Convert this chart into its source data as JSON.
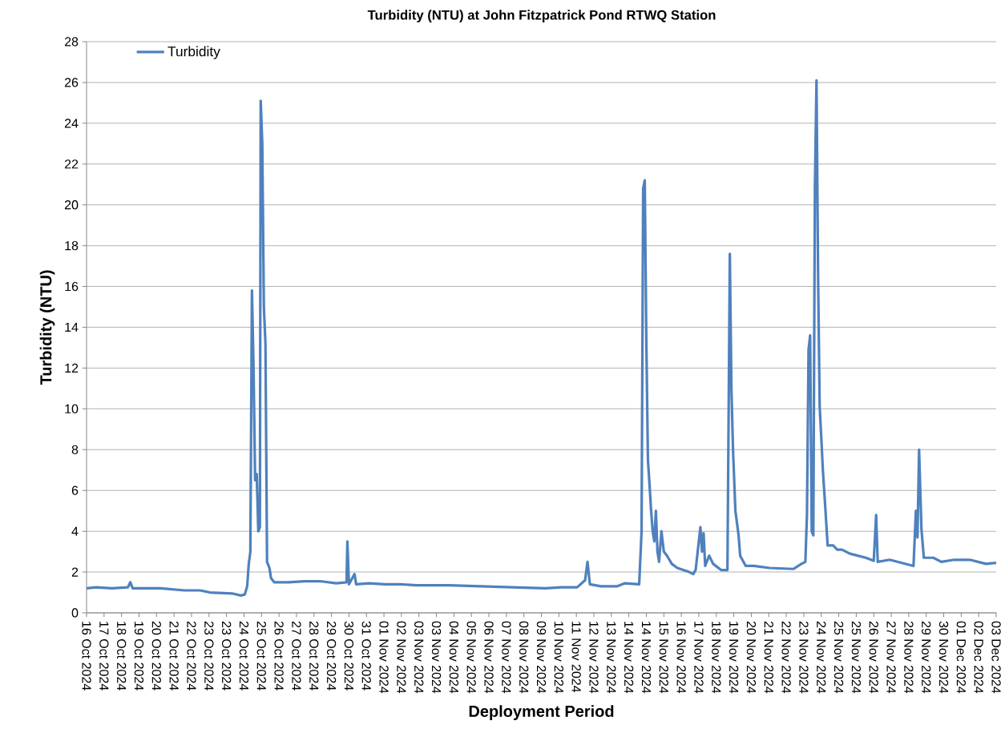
{
  "chart_data": {
    "type": "line",
    "title": "Turbidity (NTU) at John Fitzpatrick Pond RTWQ Station",
    "xlabel": "Deployment Period",
    "ylabel": "Turbidity (NTU)",
    "x": [
      "2024-10-16T15:00",
      "2024-10-17T03:00",
      "2024-10-17T23:00",
      "2024-10-18T19:00",
      "2024-10-18T22:00",
      "2024-10-19T01:00",
      "2024-10-20T12:00",
      "2024-10-21T18:00",
      "2024-10-22T14:00",
      "2024-10-23T02:00",
      "2024-10-24T06:00",
      "2024-10-24T17:00",
      "2024-10-24T22:00",
      "2024-10-25T01:00",
      "2024-10-25T03:00",
      "2024-10-25T05:00",
      "2024-10-25T07:00",
      "2024-10-25T09:00",
      "2024-10-25T11:00",
      "2024-10-25T13:00",
      "2024-10-25T15:00",
      "2024-10-25T17:00",
      "2024-10-25T18:00",
      "2024-10-25T20:00",
      "2024-10-25T22:00",
      "2024-10-26T00:00",
      "2024-10-26T02:00",
      "2024-10-26T05:00",
      "2024-10-26T07:00",
      "2024-10-26T11:00",
      "2024-10-27T05:00",
      "2024-10-28T01:00",
      "2024-10-28T21:00",
      "2024-10-29T17:00",
      "2024-10-30T06:00",
      "2024-10-30T07:00",
      "2024-10-30T09:00",
      "2024-10-30T16:00",
      "2024-10-30T18:00",
      "2024-10-31T10:00",
      "2024-11-01T06:00",
      "2024-11-02T02:00",
      "2024-11-02T22:00",
      "2024-11-04T15:00",
      "2024-11-06T07:00",
      "2024-11-07T23:00",
      "2024-11-09T16:00",
      "2024-11-10T12:00",
      "2024-11-11T08:00",
      "2024-11-11T18:00",
      "2024-11-11T21:00",
      "2024-11-12T00:00",
      "2024-11-12T14:00",
      "2024-11-13T10:00",
      "2024-11-13T20:00",
      "2024-11-14T14:00",
      "2024-11-14T17:00",
      "2024-11-14T19:00",
      "2024-11-14T21:00",
      "2024-11-14T23:00",
      "2024-11-15T01:00",
      "2024-11-15T03:00",
      "2024-11-15T05:00",
      "2024-11-15T07:00",
      "2024-11-15T09:00",
      "2024-11-15T11:00",
      "2024-11-15T13:00",
      "2024-11-15T15:00",
      "2024-11-15T18:00",
      "2024-11-15T21:00",
      "2024-11-16T01:00",
      "2024-11-16T07:00",
      "2024-11-16T14:00",
      "2024-11-17T05:00",
      "2024-11-17T10:00",
      "2024-11-17T13:00",
      "2024-11-17T17:00",
      "2024-11-17T19:00",
      "2024-11-17T21:00",
      "2024-11-17T23:00",
      "2024-11-18T01:00",
      "2024-11-18T06:00",
      "2024-11-18T11:00",
      "2024-11-18T21:00",
      "2024-11-19T05:00",
      "2024-11-19T08:00",
      "2024-11-19T10:00",
      "2024-11-19T12:00",
      "2024-11-19T15:00",
      "2024-11-19T19:00",
      "2024-11-19T21:00",
      "2024-11-20T04:00",
      "2024-11-20T14:00",
      "2024-11-21T10:00",
      "2024-11-22T16:00",
      "2024-11-23T02:00",
      "2024-11-23T07:00",
      "2024-11-23T09:00",
      "2024-11-23T11:00",
      "2024-11-23T13:00",
      "2024-11-23T15:00",
      "2024-11-23T17:00",
      "2024-11-23T19:00",
      "2024-11-23T21:00",
      "2024-11-23T23:00",
      "2024-11-24T01:00",
      "2024-11-24T03:00",
      "2024-11-24T05:00",
      "2024-11-24T08:00",
      "2024-11-24T11:00",
      "2024-11-24T18:00",
      "2024-11-24T23:00",
      "2024-11-25T05:00",
      "2024-11-25T15:00",
      "2024-11-26T01:00",
      "2024-11-26T11:00",
      "2024-11-26T21:00",
      "2024-11-27T00:00",
      "2024-11-27T02:00",
      "2024-11-27T17:00",
      "2024-11-28T03:00",
      "2024-11-28T13:00",
      "2024-11-28T23:00",
      "2024-11-29T02:00",
      "2024-11-29T04:00",
      "2024-11-29T06:00",
      "2024-11-29T09:00",
      "2024-11-29T12:00",
      "2024-11-30T00:00",
      "2024-11-30T10:00",
      "2024-12-01T02:00",
      "2024-12-01T22:00",
      "2024-12-02T18:00",
      "2024-12-03T07:00"
    ],
    "series": [
      {
        "name": "Turbidity",
        "color": "#4f81bd",
        "values": [
          1.2,
          1.25,
          1.2,
          1.25,
          1.5,
          1.2,
          1.2,
          1.1,
          1.1,
          1.0,
          0.95,
          0.85,
          0.9,
          1.3,
          2.4,
          3.0,
          15.8,
          12.0,
          6.5,
          6.8,
          4.0,
          4.2,
          25.1,
          23.0,
          15.0,
          13.2,
          2.5,
          2.2,
          1.7,
          1.5,
          1.5,
          1.55,
          1.55,
          1.45,
          1.5,
          3.5,
          1.4,
          1.9,
          1.4,
          1.45,
          1.4,
          1.4,
          1.35,
          1.35,
          1.3,
          1.25,
          1.2,
          1.25,
          1.25,
          1.6,
          2.5,
          1.4,
          1.3,
          1.3,
          1.45,
          1.4,
          4.0,
          20.8,
          21.2,
          13.3,
          7.5,
          6.3,
          5.0,
          4.0,
          3.5,
          5.0,
          3.0,
          2.5,
          4.0,
          3.0,
          2.8,
          2.4,
          2.2,
          2.0,
          1.9,
          2.1,
          3.5,
          4.2,
          3.0,
          3.9,
          2.3,
          2.8,
          2.4,
          2.1,
          2.1,
          17.6,
          11.0,
          8.0,
          5.0,
          3.8,
          2.8,
          2.3,
          2.3,
          2.2,
          2.15,
          2.4,
          2.5,
          4.8,
          12.9,
          13.6,
          4.0,
          3.8,
          20.9,
          26.1,
          16.5,
          10.1,
          8.6,
          7.0,
          5.2,
          3.3,
          3.3,
          3.1,
          3.1,
          2.9,
          2.8,
          2.7,
          2.55,
          4.8,
          2.5,
          2.6,
          2.5,
          2.4,
          2.3,
          5.0,
          3.7,
          8.0,
          4.1,
          2.7,
          2.7,
          2.5,
          2.6,
          2.6,
          2.4,
          2.45
        ]
      }
    ],
    "xlim": [
      "2024-10-16T15:00",
      "2024-12-03T07:00"
    ],
    "xticks": [
      {
        "value": "2024-10-16T15:00",
        "label": "16 Oct 2024"
      },
      {
        "value": "2024-10-17T13:00",
        "label": "17 Oct 2024"
      },
      {
        "value": "2024-10-18T11:00",
        "label": "18 Oct 2024"
      },
      {
        "value": "2024-10-19T09:00",
        "label": "19 Oct 2024"
      },
      {
        "value": "2024-10-20T07:00",
        "label": "20 Oct 2024"
      },
      {
        "value": "2024-10-21T05:00",
        "label": "21 Oct 2024"
      },
      {
        "value": "2024-10-22T03:00",
        "label": "22 Oct 2024"
      },
      {
        "value": "2024-10-23T01:00",
        "label": "23 Oct 2024"
      },
      {
        "value": "2024-10-23T23:00",
        "label": "23 Oct 2024"
      },
      {
        "value": "2024-10-24T21:00",
        "label": "24 Oct 2024"
      },
      {
        "value": "2024-10-25T19:00",
        "label": "25 Oct 2024"
      },
      {
        "value": "2024-10-26T17:00",
        "label": "26 Oct 2024"
      },
      {
        "value": "2024-10-27T15:00",
        "label": "27 Oct 2024"
      },
      {
        "value": "2024-10-28T13:00",
        "label": "28 Oct 2024"
      },
      {
        "value": "2024-10-29T11:00",
        "label": "29 Oct 2024"
      },
      {
        "value": "2024-10-30T09:00",
        "label": "30 Oct 2024"
      },
      {
        "value": "2024-10-31T07:00",
        "label": "31 Oct 2024"
      },
      {
        "value": "2024-11-01T05:00",
        "label": "01 Nov 2024"
      },
      {
        "value": "2024-11-02T03:00",
        "label": "02 Nov 2024"
      },
      {
        "value": "2024-11-03T01:00",
        "label": "03 Nov 2024"
      },
      {
        "value": "2024-11-03T23:00",
        "label": "03 Nov 2024"
      },
      {
        "value": "2024-11-04T21:00",
        "label": "04 Nov 2024"
      },
      {
        "value": "2024-11-05T19:00",
        "label": "05 Nov 2024"
      },
      {
        "value": "2024-11-06T17:00",
        "label": "06 Nov 2024"
      },
      {
        "value": "2024-11-07T15:00",
        "label": "07 Nov 2024"
      },
      {
        "value": "2024-11-08T13:00",
        "label": "08 Nov 2024"
      },
      {
        "value": "2024-11-09T11:00",
        "label": "09 Nov 2024"
      },
      {
        "value": "2024-11-10T09:00",
        "label": "10 Nov 2024"
      },
      {
        "value": "2024-11-11T07:00",
        "label": "11 Nov 2024"
      },
      {
        "value": "2024-11-12T05:00",
        "label": "12 Nov 2024"
      },
      {
        "value": "2024-11-13T03:00",
        "label": "13 Nov 2024"
      },
      {
        "value": "2024-11-14T01:00",
        "label": "14 Nov 2024"
      },
      {
        "value": "2024-11-14T23:00",
        "label": "14 Nov 2024"
      },
      {
        "value": "2024-11-15T21:00",
        "label": "15 Nov 2024"
      },
      {
        "value": "2024-11-16T19:00",
        "label": "16 Nov 2024"
      },
      {
        "value": "2024-11-17T17:00",
        "label": "17 Nov 2024"
      },
      {
        "value": "2024-11-18T15:00",
        "label": "18 Nov 2024"
      },
      {
        "value": "2024-11-19T13:00",
        "label": "19 Nov 2024"
      },
      {
        "value": "2024-11-20T11:00",
        "label": "20 Nov 2024"
      },
      {
        "value": "2024-11-21T09:00",
        "label": "21 Nov 2024"
      },
      {
        "value": "2024-11-22T07:00",
        "label": "22 Nov 2024"
      },
      {
        "value": "2024-11-23T05:00",
        "label": "23 Nov 2024"
      },
      {
        "value": "2024-11-24T03:00",
        "label": "24 Nov 2024"
      },
      {
        "value": "2024-11-25T01:00",
        "label": "25 Nov 2024"
      },
      {
        "value": "2024-11-25T23:00",
        "label": "25 Nov 2024"
      },
      {
        "value": "2024-11-26T21:00",
        "label": "26 Nov 2024"
      },
      {
        "value": "2024-11-27T19:00",
        "label": "27 Nov 2024"
      },
      {
        "value": "2024-11-28T17:00",
        "label": "28 Nov 2024"
      },
      {
        "value": "2024-11-29T15:00",
        "label": "29 Nov 2024"
      },
      {
        "value": "2024-11-30T13:00",
        "label": "30 Nov 2024"
      },
      {
        "value": "2024-12-01T11:00",
        "label": "01 Dec 2024"
      },
      {
        "value": "2024-12-02T09:00",
        "label": "02 Dec 2024"
      },
      {
        "value": "2024-12-03T07:00",
        "label": "03 Dec 2024"
      }
    ],
    "ylim": [
      0,
      28
    ],
    "yticks": [
      0,
      2,
      4,
      6,
      8,
      10,
      12,
      14,
      16,
      18,
      20,
      22,
      24,
      26,
      28
    ],
    "grid": "y",
    "legend": "top left",
    "line_style": "solid"
  }
}
